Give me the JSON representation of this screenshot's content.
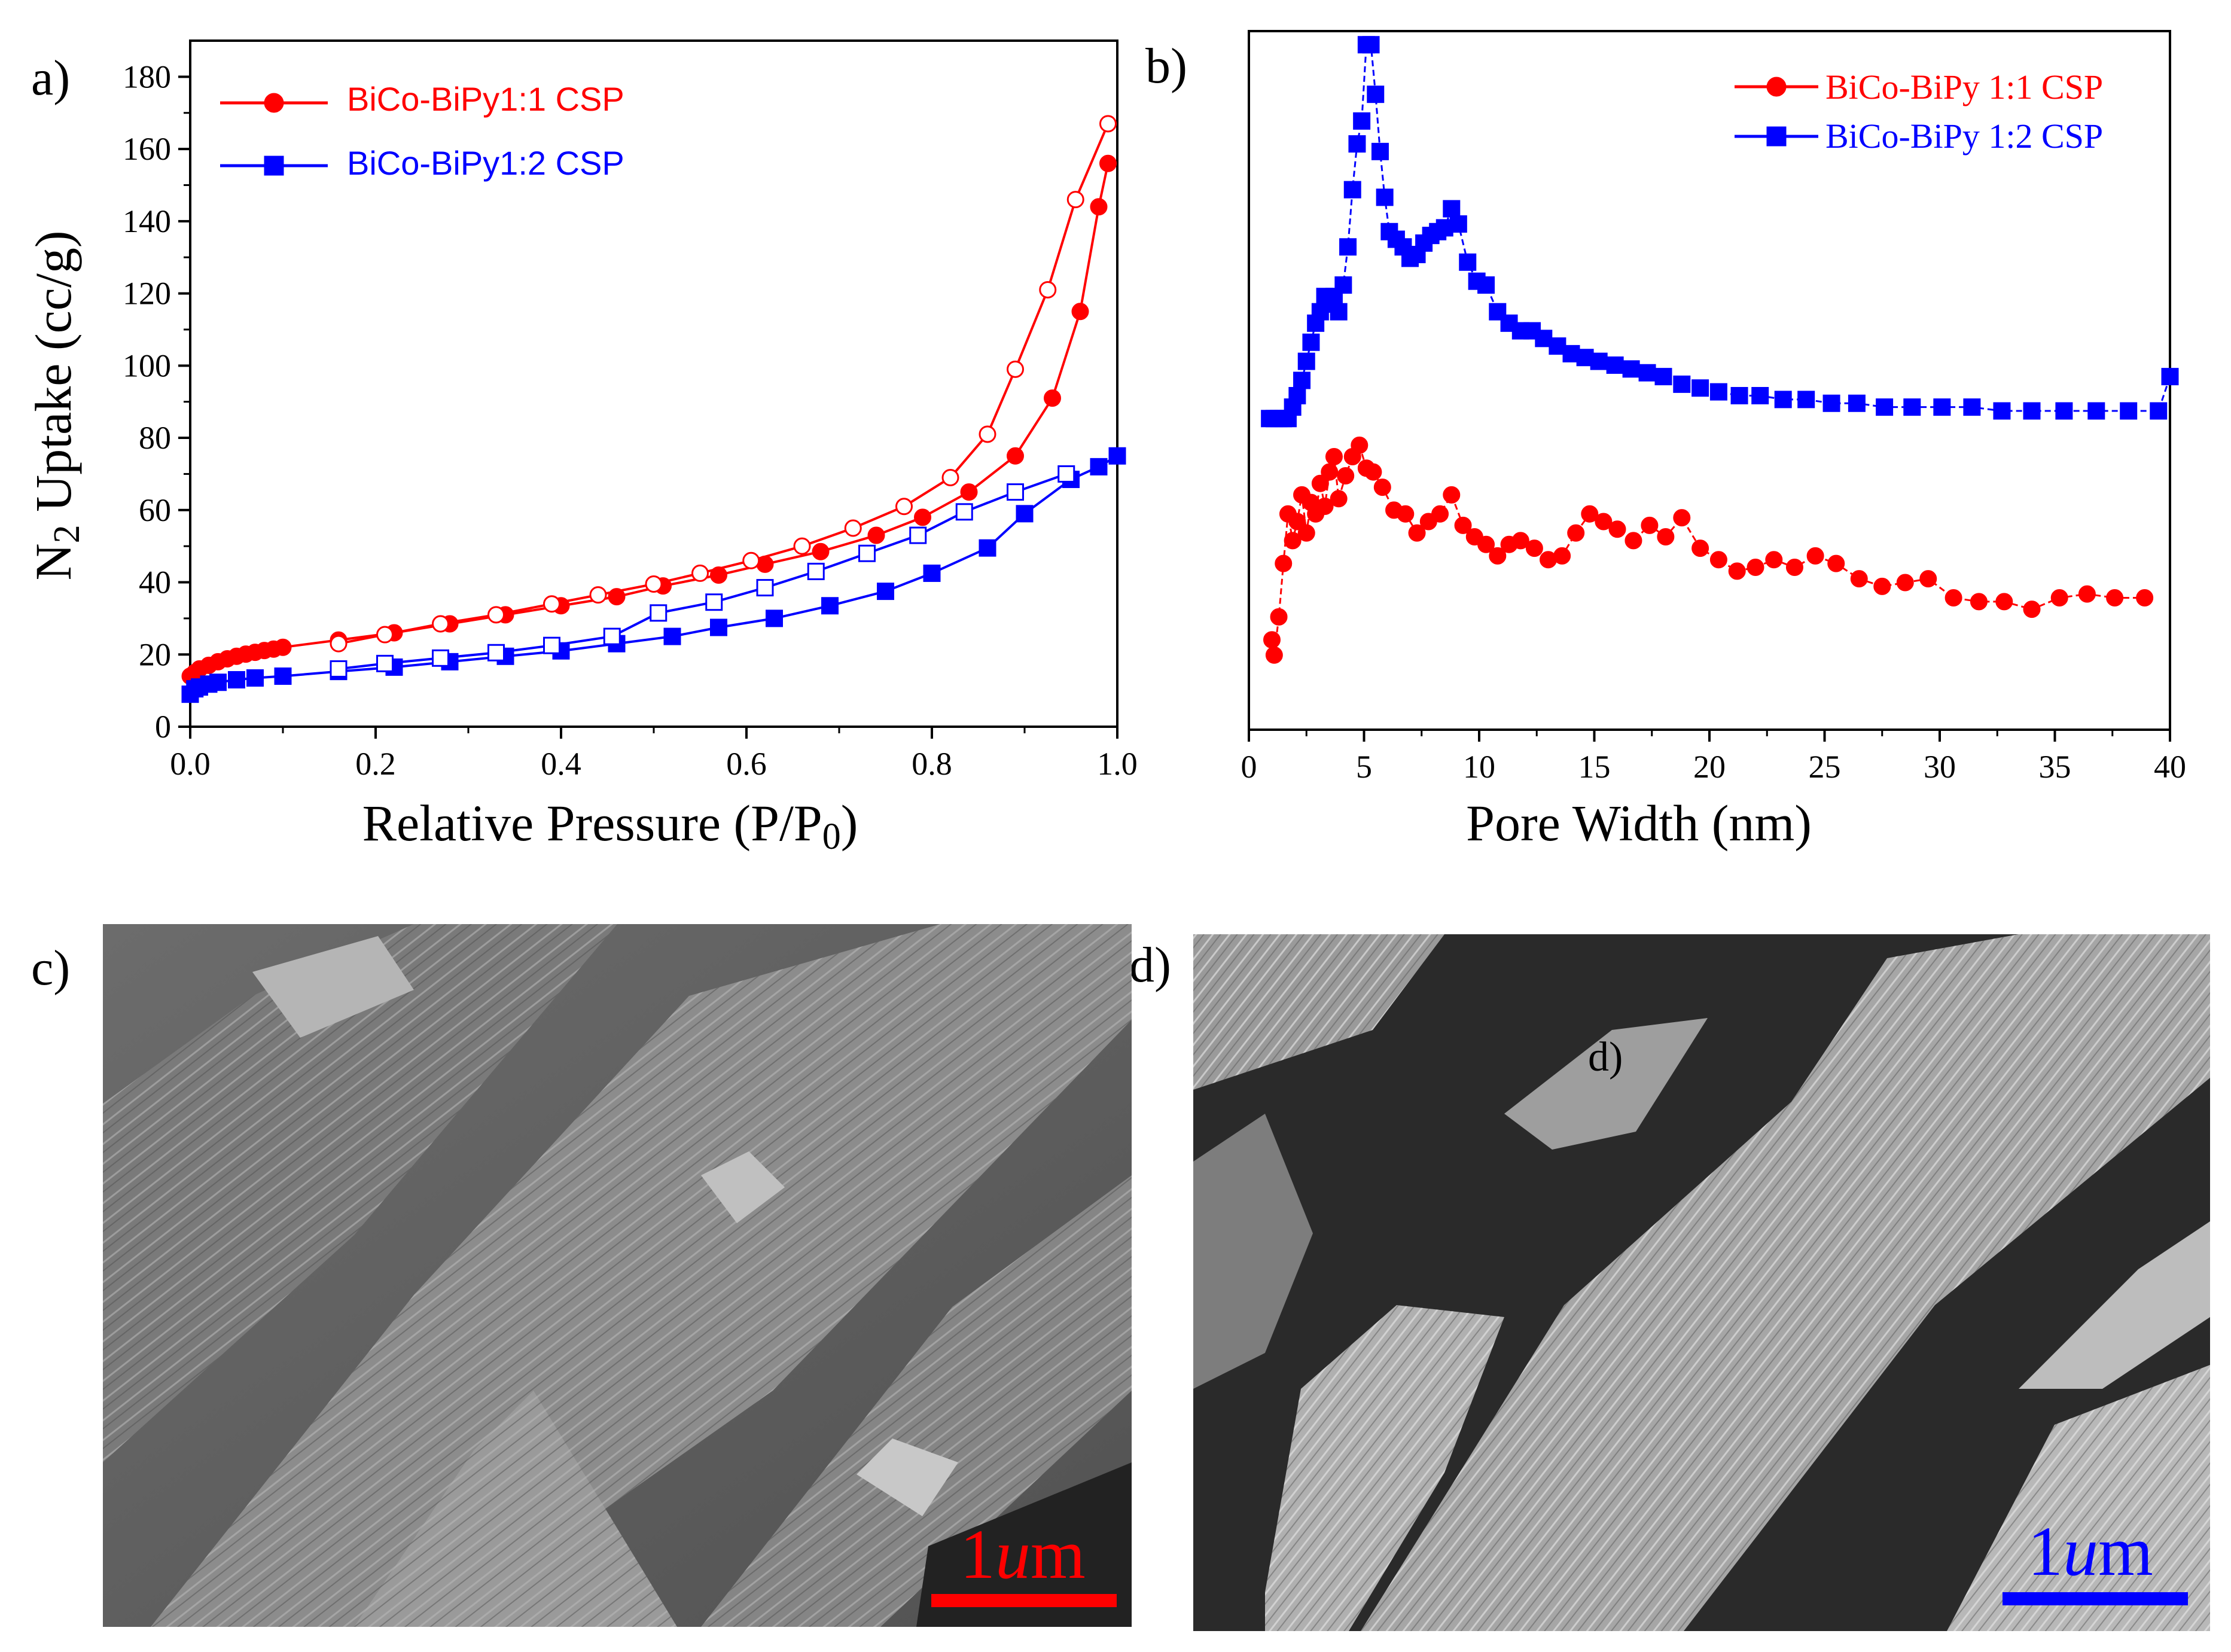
{
  "panels": {
    "a": "a)",
    "b": "b)",
    "c": "c)",
    "d": "d)",
    "d_inset": "d)"
  },
  "chart_data": [
    {
      "id": "isotherm",
      "type": "line",
      "xlabel": "Relative Pressure (P/P0)",
      "xlabel_main": "Relative Pressure (P/P",
      "xlabel_sub": "0",
      "xlabel_tail": ")",
      "ylabel": "N2 Uptake (cc/g)",
      "ylabel_pre": "N",
      "ylabel_sub": "2",
      "ylabel_post": " Uptake (cc/g)",
      "xlim": [
        0,
        1
      ],
      "ylim": [
        0,
        190
      ],
      "xticks": [
        0.0,
        0.2,
        0.4,
        0.6,
        0.8,
        1.0
      ],
      "xtick_labels": [
        "0.0",
        "0.2",
        "0.4",
        "0.6",
        "0.8",
        "1.0"
      ],
      "yticks": [
        0,
        20,
        40,
        60,
        80,
        100,
        120,
        140,
        160,
        180
      ],
      "ytick_labels": [
        "0",
        "20",
        "40",
        "60",
        "80",
        "100",
        "120",
        "140",
        "160",
        "180"
      ],
      "legend_position": "top-left",
      "series": [
        {
          "name": "BiCo-BiPy1:1 CSP",
          "color": "#ff0000",
          "marker": "circle",
          "adsorption": {
            "x": [
              0.0,
              0.005,
              0.01,
              0.02,
              0.03,
              0.04,
              0.05,
              0.06,
              0.07,
              0.08,
              0.09,
              0.1,
              0.16,
              0.22,
              0.28,
              0.34,
              0.4,
              0.46,
              0.51,
              0.57,
              0.62,
              0.68,
              0.74,
              0.79,
              0.84,
              0.89,
              0.93,
              0.96,
              0.98,
              0.99
            ],
            "y": [
              14,
              15,
              16,
              17,
              18,
              18.8,
              19.5,
              20.1,
              20.6,
              21.1,
              21.5,
              22,
              24,
              26,
              28.5,
              31,
              33.5,
              36,
              39,
              42,
              45,
              48.5,
              53,
              58,
              65,
              75,
              91,
              115,
              144,
              156
            ]
          },
          "desorption": {
            "x": [
              0.99,
              0.955,
              0.925,
              0.89,
              0.86,
              0.82,
              0.77,
              0.715,
              0.66,
              0.605,
              0.55,
              0.5,
              0.44,
              0.39,
              0.33,
              0.27,
              0.21,
              0.16
            ],
            "y": [
              167,
              146,
              121,
              99,
              81,
              69,
              61,
              55,
              50,
              46,
              42.5,
              39.5,
              36.5,
              34,
              31,
              28.5,
              25.5,
              23
            ]
          }
        },
        {
          "name": "BiCo-BiPy1:2 CSP",
          "color": "#0000ff",
          "marker": "square",
          "adsorption": {
            "x": [
              0.0,
              0.005,
              0.01,
              0.02,
              0.03,
              0.05,
              0.07,
              0.1,
              0.16,
              0.22,
              0.28,
              0.34,
              0.4,
              0.46,
              0.52,
              0.57,
              0.63,
              0.69,
              0.75,
              0.8,
              0.86,
              0.9,
              0.95,
              0.98,
              1.0
            ],
            "y": [
              9,
              10.5,
              11,
              11.8,
              12.3,
              13,
              13.5,
              14,
              15.3,
              16.5,
              18,
              19.5,
              21,
              23,
              25,
              27.5,
              30,
              33.5,
              37.5,
              42.5,
              49.5,
              59,
              68.5,
              72,
              75
            ]
          },
          "desorption": {
            "x": [
              0.945,
              0.89,
              0.835,
              0.785,
              0.73,
              0.675,
              0.62,
              0.565,
              0.505,
              0.455,
              0.39,
              0.33,
              0.27,
              0.21,
              0.16
            ],
            "y": [
              70,
              65,
              59.5,
              53,
              48,
              43,
              38.5,
              34.5,
              31.5,
              25,
              22.5,
              20.5,
              19,
              17.5,
              16
            ]
          }
        }
      ]
    },
    {
      "id": "pore-distribution",
      "type": "line",
      "xlabel": "Pore Width (nm)",
      "xlim": [
        0,
        40
      ],
      "ylim": [
        0,
        180
      ],
      "xticks": [
        0,
        5,
        10,
        15,
        20,
        25,
        30,
        35,
        40
      ],
      "xtick_labels": [
        "0",
        "5",
        "10",
        "15",
        "20",
        "25",
        "30",
        "35",
        "40"
      ],
      "legend_position": "top-right",
      "series": [
        {
          "name": "BiCo-BiPy 1:1 CSP",
          "color": "#ff0000",
          "marker": "circle",
          "x": [
            1.0,
            1.1,
            1.3,
            1.5,
            1.7,
            1.9,
            2.1,
            2.3,
            2.5,
            2.7,
            2.9,
            3.1,
            3.3,
            3.5,
            3.7,
            3.9,
            4.2,
            4.5,
            4.8,
            5.1,
            5.4,
            5.8,
            6.3,
            6.8,
            7.3,
            7.8,
            8.3,
            8.8,
            9.3,
            9.8,
            10.3,
            10.8,
            11.3,
            11.8,
            12.4,
            13.0,
            13.6,
            14.2,
            14.8,
            15.4,
            16.0,
            16.7,
            17.4,
            18.1,
            18.8,
            19.6,
            20.4,
            21.2,
            22.0,
            22.8,
            23.7,
            24.6,
            25.5,
            26.5,
            27.5,
            28.5,
            29.5,
            30.6,
            31.7,
            32.8,
            34.0,
            35.2,
            36.4,
            37.6,
            38.9
          ],
          "y": [
            22,
            18,
            28,
            42,
            55,
            48,
            53,
            60,
            50,
            58,
            55,
            63,
            57,
            66,
            70,
            59,
            65,
            70,
            73,
            67,
            66,
            62,
            56,
            55,
            50,
            53,
            55,
            60,
            52,
            49,
            47,
            44,
            47,
            48,
            46,
            43,
            44,
            50,
            55,
            53,
            51,
            48,
            52,
            49,
            54,
            46,
            43,
            40,
            41,
            43,
            41,
            44,
            42,
            38,
            36,
            37,
            38,
            33,
            32,
            32,
            30,
            33,
            34,
            33,
            33
          ]
        },
        {
          "name": "BiCo-BiPy 1:2 CSP",
          "color": "#0000ff",
          "marker": "square",
          "x": [
            0.9,
            1.1,
            1.3,
            1.5,
            1.7,
            1.9,
            2.1,
            2.3,
            2.5,
            2.7,
            2.9,
            3.1,
            3.3,
            3.5,
            3.7,
            3.9,
            4.1,
            4.3,
            4.5,
            4.7,
            4.9,
            5.1,
            5.3,
            5.5,
            5.7,
            5.9,
            6.1,
            6.4,
            6.7,
            7.0,
            7.3,
            7.6,
            7.9,
            8.2,
            8.5,
            8.8,
            9.1,
            9.5,
            9.9,
            10.3,
            10.8,
            11.3,
            11.8,
            12.3,
            12.8,
            13.4,
            14.0,
            14.6,
            15.2,
            15.9,
            16.6,
            17.3,
            18.0,
            18.8,
            19.6,
            20.4,
            21.3,
            22.2,
            23.2,
            24.2,
            25.3,
            26.4,
            27.6,
            28.8,
            30.1,
            31.4,
            32.7,
            34.0,
            35.4,
            36.8,
            38.2,
            39.5,
            40.0
          ],
          "y": [
            80,
            80,
            80,
            80,
            80,
            83,
            86,
            90,
            95,
            100,
            105,
            108,
            112,
            110,
            112,
            108,
            115,
            125,
            140,
            152,
            158,
            178,
            178,
            165,
            150,
            138,
            129,
            127,
            125,
            122,
            123,
            126,
            128,
            129,
            130,
            135,
            131,
            121,
            116,
            115,
            108,
            105,
            103,
            103,
            101,
            99,
            97,
            96,
            95,
            94,
            93,
            92,
            91,
            89,
            88,
            87,
            86,
            86,
            85,
            85,
            84,
            84,
            83,
            83,
            83,
            83,
            82,
            82,
            82,
            82,
            82,
            82,
            91
          ]
        }
      ]
    }
  ],
  "scalebars": {
    "c": {
      "label_num": "1",
      "label_unit_italic": "u",
      "label_tail": "m",
      "color": "#ff0000"
    },
    "d": {
      "label_num": "1",
      "label_unit_italic": "u",
      "label_tail": "m",
      "color": "#0000ff"
    }
  }
}
